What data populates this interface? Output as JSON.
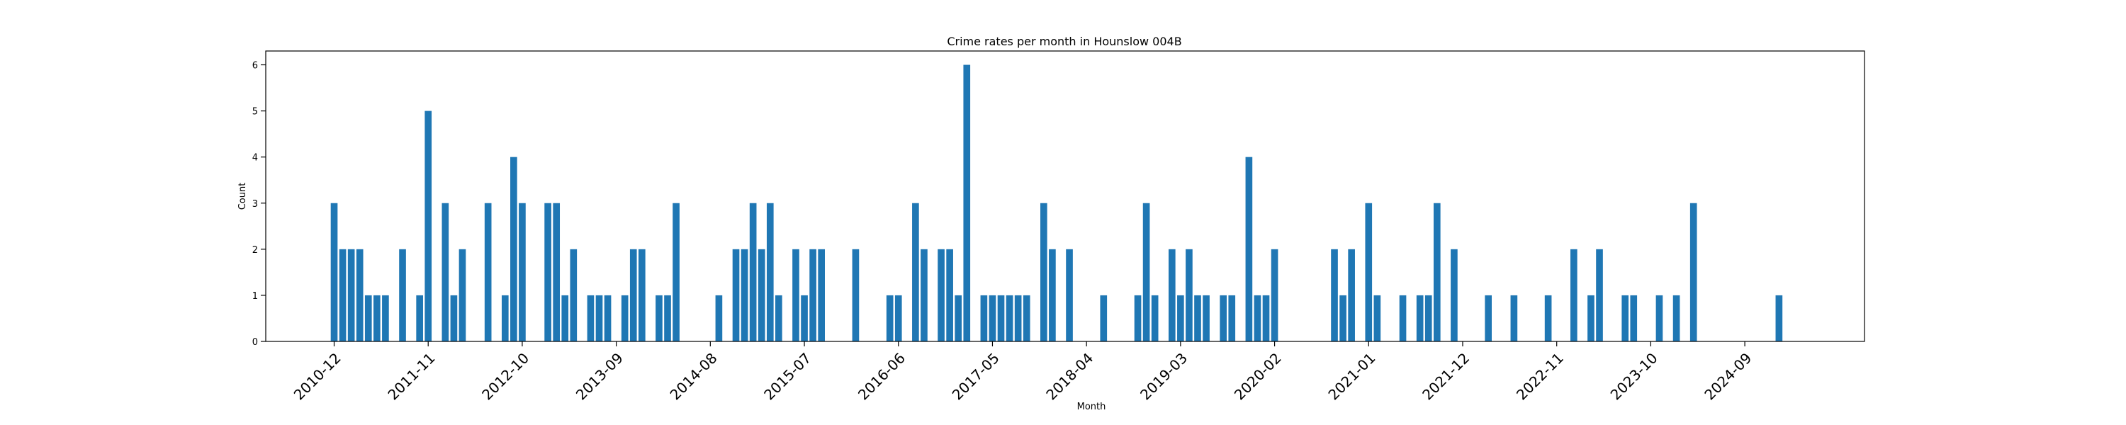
{
  "chart_data": {
    "type": "bar",
    "title": "Crime rates per month in Hounslow 004B",
    "xlabel": "Month",
    "ylabel": "Count",
    "ylim": [
      0,
      6.3
    ],
    "yticks": [
      0,
      1,
      2,
      3,
      4,
      5,
      6
    ],
    "xticks": [
      "2010-12",
      "2011-11",
      "2012-10",
      "2013-09",
      "2014-08",
      "2015-07",
      "2016-06",
      "2017-05",
      "2018-04",
      "2019-03",
      "2020-02",
      "2021-01",
      "2021-12",
      "2022-11",
      "2023-10",
      "2024-09"
    ],
    "x_range": [
      "2010-04",
      "2025-11"
    ],
    "grid": false,
    "legend": "none",
    "bar_color": "#1f77b4",
    "points": [
      [
        "2010-12",
        3
      ],
      [
        "2011-01",
        2
      ],
      [
        "2011-02",
        2
      ],
      [
        "2011-03",
        2
      ],
      [
        "2011-04",
        1
      ],
      [
        "2011-05",
        1
      ],
      [
        "2011-06",
        1
      ],
      [
        "2011-08",
        2
      ],
      [
        "2011-10",
        1
      ],
      [
        "2011-11",
        5
      ],
      [
        "2012-01",
        3
      ],
      [
        "2012-02",
        1
      ],
      [
        "2012-03",
        2
      ],
      [
        "2012-06",
        3
      ],
      [
        "2012-08",
        1
      ],
      [
        "2012-09",
        4
      ],
      [
        "2012-10",
        3
      ],
      [
        "2013-01",
        3
      ],
      [
        "2013-02",
        3
      ],
      [
        "2013-03",
        1
      ],
      [
        "2013-04",
        2
      ],
      [
        "2013-06",
        1
      ],
      [
        "2013-07",
        1
      ],
      [
        "2013-08",
        1
      ],
      [
        "2013-10",
        1
      ],
      [
        "2013-11",
        2
      ],
      [
        "2013-12",
        2
      ],
      [
        "2014-02",
        1
      ],
      [
        "2014-03",
        1
      ],
      [
        "2014-04",
        3
      ],
      [
        "2014-09",
        1
      ],
      [
        "2014-11",
        2
      ],
      [
        "2014-12",
        2
      ],
      [
        "2015-01",
        3
      ],
      [
        "2015-02",
        2
      ],
      [
        "2015-03",
        3
      ],
      [
        "2015-04",
        1
      ],
      [
        "2015-06",
        2
      ],
      [
        "2015-07",
        1
      ],
      [
        "2015-08",
        2
      ],
      [
        "2015-09",
        2
      ],
      [
        "2016-01",
        2
      ],
      [
        "2016-05",
        1
      ],
      [
        "2016-06",
        1
      ],
      [
        "2016-08",
        3
      ],
      [
        "2016-09",
        2
      ],
      [
        "2016-11",
        2
      ],
      [
        "2016-12",
        2
      ],
      [
        "2017-01",
        1
      ],
      [
        "2017-02",
        6
      ],
      [
        "2017-04",
        1
      ],
      [
        "2017-05",
        1
      ],
      [
        "2017-06",
        1
      ],
      [
        "2017-07",
        1
      ],
      [
        "2017-08",
        1
      ],
      [
        "2017-09",
        1
      ],
      [
        "2017-11",
        3
      ],
      [
        "2017-12",
        2
      ],
      [
        "2018-02",
        2
      ],
      [
        "2018-06",
        1
      ],
      [
        "2018-10",
        1
      ],
      [
        "2018-11",
        3
      ],
      [
        "2018-12",
        1
      ],
      [
        "2019-02",
        2
      ],
      [
        "2019-03",
        1
      ],
      [
        "2019-04",
        2
      ],
      [
        "2019-05",
        1
      ],
      [
        "2019-06",
        1
      ],
      [
        "2019-08",
        1
      ],
      [
        "2019-09",
        1
      ],
      [
        "2019-11",
        4
      ],
      [
        "2019-12",
        1
      ],
      [
        "2020-01",
        1
      ],
      [
        "2020-02",
        2
      ],
      [
        "2020-09",
        2
      ],
      [
        "2020-10",
        1
      ],
      [
        "2020-11",
        2
      ],
      [
        "2021-01",
        3
      ],
      [
        "2021-02",
        1
      ],
      [
        "2021-05",
        1
      ],
      [
        "2021-07",
        1
      ],
      [
        "2021-08",
        1
      ],
      [
        "2021-09",
        3
      ],
      [
        "2021-11",
        2
      ],
      [
        "2022-03",
        1
      ],
      [
        "2022-06",
        1
      ],
      [
        "2022-10",
        1
      ],
      [
        "2023-01",
        2
      ],
      [
        "2023-03",
        1
      ],
      [
        "2023-04",
        2
      ],
      [
        "2023-07",
        1
      ],
      [
        "2023-08",
        1
      ],
      [
        "2023-11",
        1
      ],
      [
        "2024-01",
        1
      ],
      [
        "2024-03",
        3
      ],
      [
        "2025-01",
        1
      ]
    ]
  }
}
